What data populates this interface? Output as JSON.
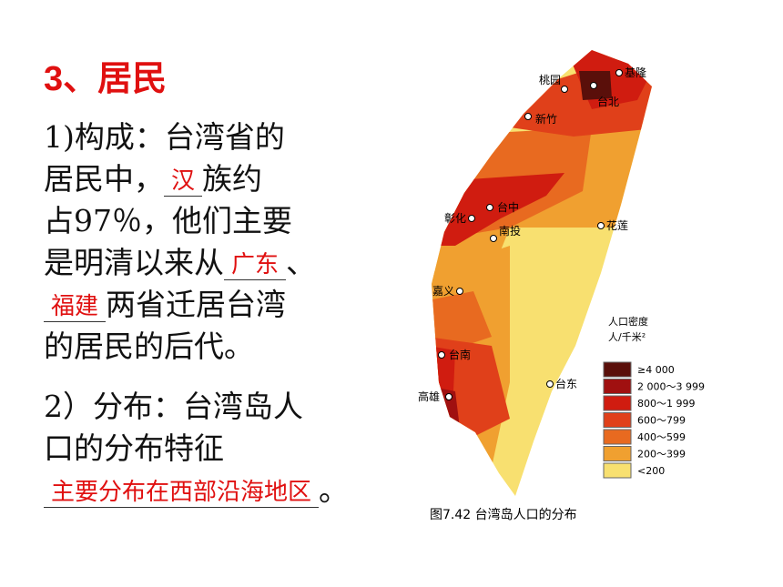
{
  "title": "3、居民",
  "part1": {
    "lines": [
      [
        {
          "text": "1)构成：台湾省的"
        }
      ],
      [
        {
          "text": "居民中，"
        },
        {
          "answer": "汉"
        },
        {
          "text": "族约"
        }
      ],
      [
        {
          "text": "占97％，他们主要"
        }
      ],
      [
        {
          "text": "是明清以来从"
        },
        {
          "answer": "广东"
        },
        {
          "text": "、"
        }
      ],
      [
        {
          "answer": "福建"
        },
        {
          "text": "两省迁居台湾"
        }
      ],
      [
        {
          "text": "的居民的后代。"
        }
      ]
    ]
  },
  "part2": {
    "lines": [
      [
        {
          "text": "2）分布：台湾岛人"
        }
      ],
      [
        {
          "text": "口的分布特征"
        }
      ],
      [
        {
          "answer": "主要分布在西部沿海地区"
        },
        {
          "text": "。"
        }
      ]
    ]
  },
  "map": {
    "cities": [
      "桃园",
      "基隆",
      "台北",
      "新竹",
      "台中",
      "彰化",
      "南投",
      "花莲",
      "嘉义",
      "台南",
      "台东",
      "高雄"
    ],
    "legend_title": "人口密度",
    "legend_unit": "人/千米²",
    "legend_items": [
      "≥4 000",
      "2 000～3 999",
      "800～1 999",
      "600～799",
      "400～599",
      "200～399",
      "<200"
    ],
    "caption": "图7.42 台湾岛人口的分布"
  }
}
